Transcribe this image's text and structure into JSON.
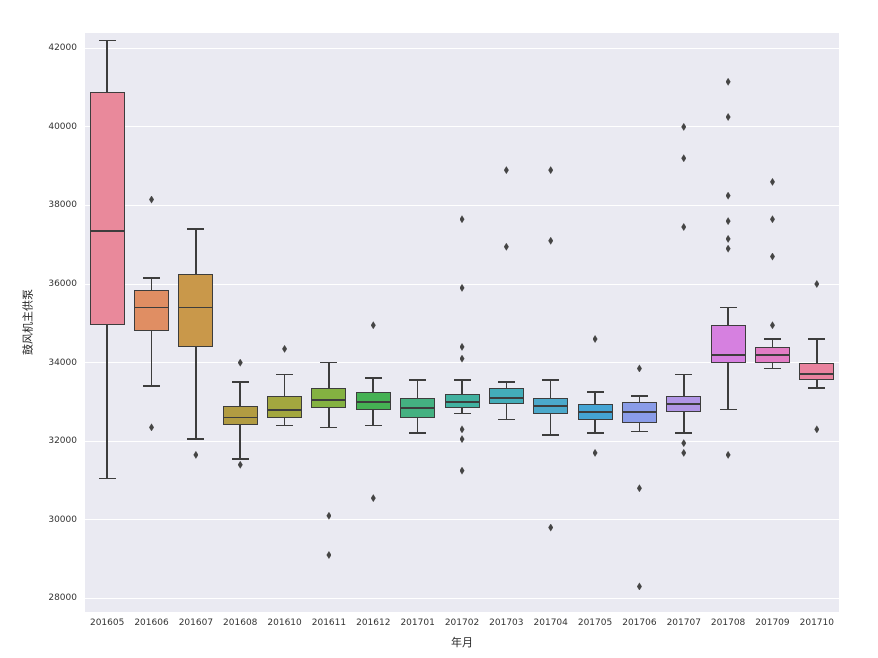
{
  "figure": {
    "xlabel": "年月",
    "ylabel": "鼓风机主供泵"
  },
  "theme": {
    "figure_bg": "#ffffff",
    "axes_bg": "#eaeaf2",
    "grid_color": "#ffffff",
    "edge_color": "#3d3d3d",
    "flier_color": "#454545",
    "tick_text_color": "#333333"
  },
  "chart_data": {
    "type": "box",
    "title": "",
    "xlabel": "年月",
    "ylabel": "鼓风机主供泵",
    "grid": true,
    "legend": false,
    "ylim": [
      27650,
      42390
    ],
    "yticks": [
      28000,
      30000,
      32000,
      34000,
      36000,
      38000,
      40000,
      42000
    ],
    "categories": [
      "201605",
      "201606",
      "201607",
      "201608",
      "201610",
      "201611",
      "201612",
      "201701",
      "201702",
      "201703",
      "201704",
      "201705",
      "201706",
      "201707",
      "201708",
      "201709",
      "201710"
    ],
    "boxes": [
      {
        "label": "201605",
        "color": "#e9899b",
        "whisker_low": 31050,
        "q1": 34950,
        "median": 37350,
        "q3": 40900,
        "whisker_high": 42200,
        "fliers": []
      },
      {
        "label": "201606",
        "color": "#e08e63",
        "whisker_low": 33400,
        "q1": 34800,
        "median": 35400,
        "q3": 35850,
        "whisker_high": 36150,
        "fliers": [
          38150,
          32350
        ]
      },
      {
        "label": "201607",
        "color": "#c9984a",
        "whisker_low": 32050,
        "q1": 34400,
        "median": 35400,
        "q3": 36250,
        "whisker_high": 37400,
        "fliers": [
          31650
        ]
      },
      {
        "label": "201608",
        "color": "#b29c42",
        "whisker_low": 31550,
        "q1": 32400,
        "median": 32600,
        "q3": 32900,
        "whisker_high": 33500,
        "fliers": [
          34000,
          31400
        ]
      },
      {
        "label": "201610",
        "color": "#a3a73f",
        "whisker_low": 32400,
        "q1": 32600,
        "median": 32800,
        "q3": 33150,
        "whisker_high": 33700,
        "fliers": [
          34350
        ]
      },
      {
        "label": "201611",
        "color": "#84b241",
        "whisker_low": 32350,
        "q1": 32850,
        "median": 33050,
        "q3": 33350,
        "whisker_high": 34000,
        "fliers": [
          30100,
          29100
        ]
      },
      {
        "label": "201612",
        "color": "#45b153",
        "whisker_low": 32400,
        "q1": 32800,
        "median": 33000,
        "q3": 33250,
        "whisker_high": 33600,
        "fliers": [
          34950,
          30550
        ]
      },
      {
        "label": "201701",
        "color": "#44b181",
        "whisker_low": 32200,
        "q1": 32600,
        "median": 32850,
        "q3": 33100,
        "whisker_high": 33550,
        "fliers": []
      },
      {
        "label": "201702",
        "color": "#41b1a0",
        "whisker_low": 32700,
        "q1": 32850,
        "median": 33000,
        "q3": 33200,
        "whisker_high": 33550,
        "fliers": [
          37650,
          35900,
          34400,
          34100,
          32300,
          32050,
          31250
        ]
      },
      {
        "label": "201703",
        "color": "#43adb9",
        "whisker_low": 32550,
        "q1": 32950,
        "median": 33100,
        "q3": 33350,
        "whisker_high": 33500,
        "fliers": [
          38900,
          36950
        ]
      },
      {
        "label": "201704",
        "color": "#4ba9cb",
        "whisker_low": 32150,
        "q1": 32700,
        "median": 32900,
        "q3": 33100,
        "whisker_high": 33550,
        "fliers": [
          38900,
          37100,
          29800
        ]
      },
      {
        "label": "201705",
        "color": "#44a4d4",
        "whisker_low": 32200,
        "q1": 32550,
        "median": 32750,
        "q3": 32950,
        "whisker_high": 33250,
        "fliers": [
          34600,
          31700
        ]
      },
      {
        "label": "201706",
        "color": "#8a9ce8",
        "whisker_low": 32250,
        "q1": 32450,
        "median": 32750,
        "q3": 33000,
        "whisker_high": 33150,
        "fliers": [
          33850,
          30800,
          28300
        ]
      },
      {
        "label": "201707",
        "color": "#b195e6",
        "whisker_low": 32200,
        "q1": 32750,
        "median": 32950,
        "q3": 33150,
        "whisker_high": 33700,
        "fliers": [
          40000,
          39200,
          37450,
          31950,
          31700
        ]
      },
      {
        "label": "201708",
        "color": "#d680e0",
        "whisker_low": 32800,
        "q1": 34000,
        "median": 34200,
        "q3": 34950,
        "whisker_high": 35400,
        "fliers": [
          41150,
          40250,
          38250,
          37600,
          37150,
          36900,
          31650
        ]
      },
      {
        "label": "201709",
        "color": "#e27cc4",
        "whisker_low": 33850,
        "q1": 34000,
        "median": 34200,
        "q3": 34400,
        "whisker_high": 34600,
        "fliers": [
          38600,
          37650,
          36700,
          34950
        ]
      },
      {
        "label": "201710",
        "color": "#e9829e",
        "whisker_low": 33350,
        "q1": 33550,
        "median": 33700,
        "q3": 34000,
        "whisker_high": 34600,
        "fliers": [
          36000,
          32300
        ]
      }
    ]
  }
}
